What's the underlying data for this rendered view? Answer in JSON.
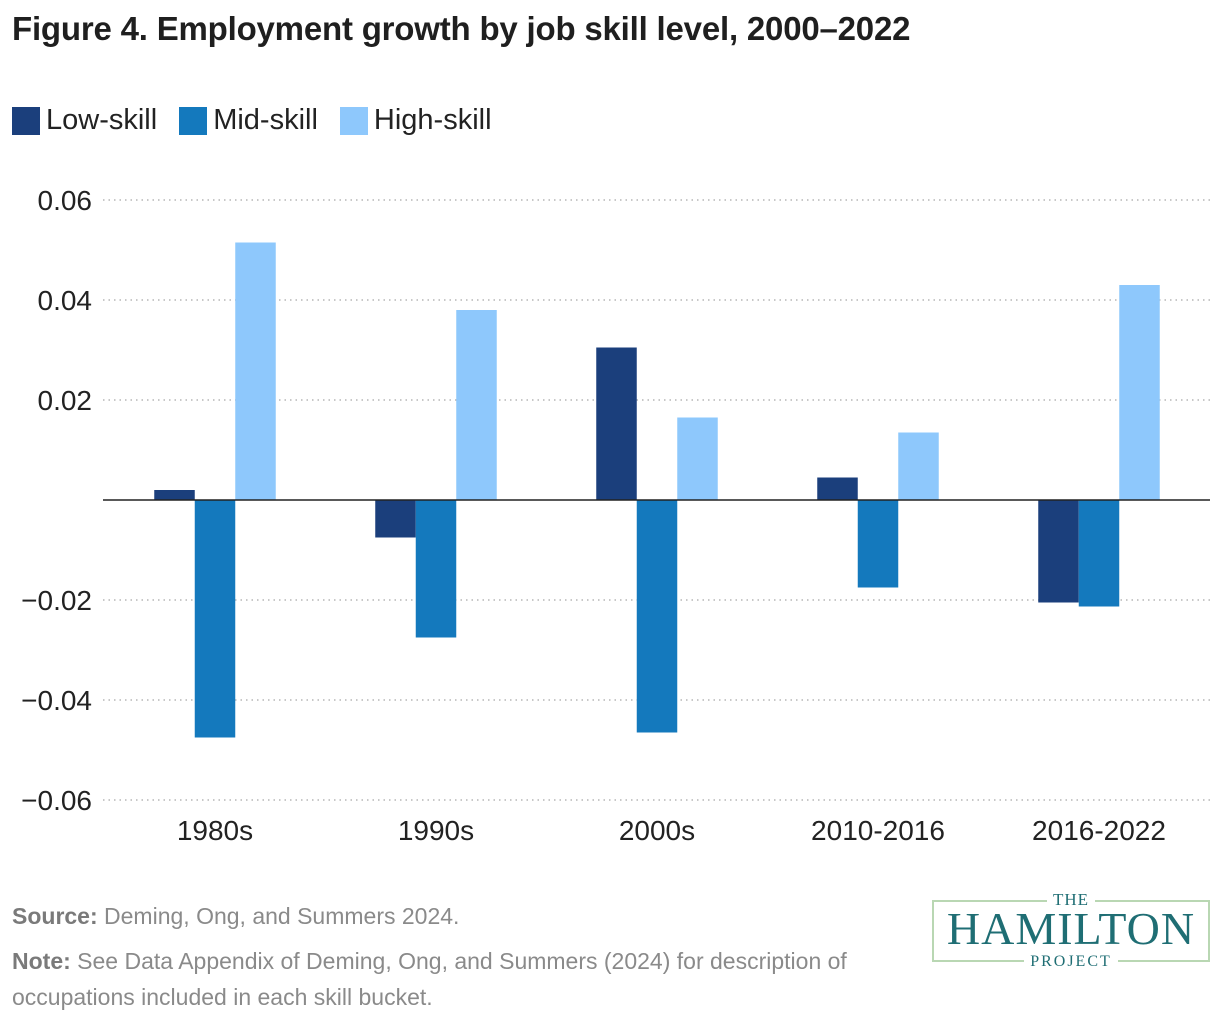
{
  "title": "Figure 4. Employment growth by job skill level, 2000–2022",
  "source_label": "Source:",
  "source_text": " Deming, Ong, and Summers 2024.",
  "note_label": "Note:",
  "note_text": " See Data Appendix of Deming, Ong, and Summers (2024) for description of occupations included in each skill bucket.",
  "logo": {
    "top": "THE",
    "main": "HAMILTON",
    "bottom": "PROJECT"
  },
  "colors": {
    "low": "#1b3f7c",
    "mid": "#1479bd",
    "high": "#8ec8fc",
    "logo": "#1f6e74"
  },
  "chart_data": {
    "type": "bar",
    "categories": [
      "1980s",
      "1990s",
      "2000s",
      "2010-2016",
      "2016-2022"
    ],
    "series": [
      {
        "name": "Low-skill",
        "color": "#1b3f7c",
        "values": [
          0.002,
          -0.0075,
          0.0305,
          0.0045,
          -0.0205
        ]
      },
      {
        "name": "Mid-skill",
        "color": "#1479bd",
        "values": [
          -0.0475,
          -0.0275,
          -0.0465,
          -0.0175,
          -0.0213
        ]
      },
      {
        "name": "High-skill",
        "color": "#8ec8fc",
        "values": [
          0.0515,
          0.038,
          0.0165,
          0.0135,
          0.043
        ]
      }
    ],
    "ylim": [
      -0.06,
      0.06
    ],
    "yticks": [
      0.06,
      0.04,
      0.02,
      -0.02,
      -0.04,
      -0.06
    ],
    "ytick_labels": [
      "0.06",
      "0.04",
      "0.02",
      "−0.02",
      "−0.04",
      "−0.06"
    ],
    "grid": true,
    "legend_position": "top-left"
  }
}
